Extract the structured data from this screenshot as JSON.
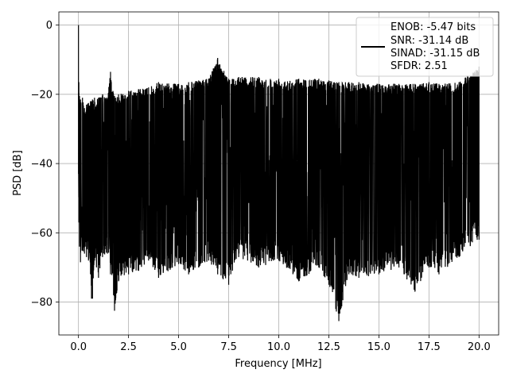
{
  "chart_data": {
    "type": "line",
    "title": "",
    "xlabel": "Frequency [MHz]",
    "ylabel": "PSD [dB]",
    "xlim": [
      -0.98,
      20.98
    ],
    "ylim": [
      -89.5,
      3.8
    ],
    "xticks": [
      0.0,
      2.5,
      5.0,
      7.5,
      10.0,
      12.5,
      15.0,
      17.5,
      20.0
    ],
    "xtick_labels": [
      "0.0",
      "2.5",
      "5.0",
      "7.5",
      "10.0",
      "12.5",
      "15.0",
      "17.5",
      "20.0"
    ],
    "yticks": [
      0,
      -20,
      -40,
      -60,
      -80
    ],
    "ytick_labels": [
      "0",
      "−20",
      "−40",
      "−60",
      "−80"
    ],
    "grid": true,
    "legend_position": "top-right",
    "series": [
      {
        "color": "#000000",
        "legend_lines": [
          "ENOB: -5.47 bits",
          "SNR: -31.14 dB",
          "SINAD: -31.15 dB",
          "SFDR: 2.51"
        ],
        "x": [
          0.0,
          0.02,
          0.05,
          0.1,
          0.2,
          0.3,
          0.4,
          0.5,
          0.6,
          0.65,
          0.7,
          0.8,
          1.0,
          1.2,
          1.45,
          1.6,
          1.75,
          1.8,
          1.85,
          2.0,
          2.5,
          3.0,
          3.5,
          4.0,
          5.0,
          5.5,
          6.0,
          6.5,
          6.95,
          7.5,
          8.0,
          9.0,
          10.0,
          11.0,
          12.0,
          12.5,
          13.0,
          13.5,
          14.0,
          15.0,
          16.0,
          16.8,
          17.5,
          18.0,
          19.0,
          20.0
        ],
        "upper": [
          0.0,
          -16.5,
          -20.5,
          -21.5,
          -21.0,
          -24.0,
          -23.0,
          -22.5,
          -22.0,
          -22.0,
          -21.5,
          -21.0,
          -21.0,
          -20.0,
          -21.0,
          -13.5,
          -20.0,
          -20.5,
          -21.0,
          -20.0,
          -19.0,
          -18.5,
          -18.0,
          -16.5,
          -17.0,
          -16.5,
          -16.0,
          -15.5,
          -9.5,
          -15.5,
          -15.0,
          -15.0,
          -15.5,
          -15.5,
          -15.5,
          -16.0,
          -16.5,
          -16.5,
          -16.5,
          -17.0,
          -17.0,
          -17.0,
          -16.5,
          -17.0,
          -16.5,
          -12.0
        ],
        "lower": [
          -43.0,
          -57.0,
          -64.0,
          -68.5,
          -65.0,
          -66.0,
          -67.0,
          -68.0,
          -72.0,
          -79.0,
          -79.0,
          -68.0,
          -73.0,
          -67.0,
          -66.0,
          -72.0,
          -78.0,
          -82.5,
          -79.5,
          -74.0,
          -72.0,
          -71.0,
          -68.0,
          -73.0,
          -69.0,
          -72.0,
          -70.0,
          -68.0,
          -72.0,
          -75.0,
          -67.0,
          -70.0,
          -68.0,
          -74.0,
          -70.0,
          -75.0,
          -85.5,
          -72.0,
          -73.0,
          -72.0,
          -70.0,
          -77.0,
          -70.0,
          -72.0,
          -67.0,
          -62.0
        ]
      }
    ]
  }
}
